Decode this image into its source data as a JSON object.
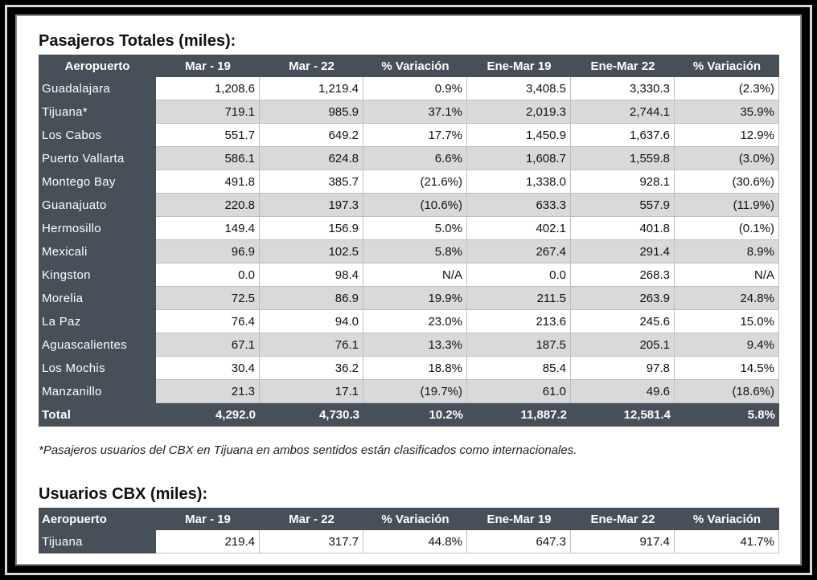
{
  "section1": {
    "title": "Pasajeros Totales (miles):",
    "headers": [
      "Aeropuerto",
      "Mar - 19",
      "Mar - 22",
      "% Variación",
      "Ene-Mar 19",
      "Ene-Mar 22",
      "% Variación"
    ],
    "rows": [
      [
        "Guadalajara",
        "1,208.6",
        "1,219.4",
        "0.9%",
        "3,408.5",
        "3,330.3",
        "(2.3%)"
      ],
      [
        "Tijuana*",
        "719.1",
        "985.9",
        "37.1%",
        "2,019.3",
        "2,744.1",
        "35.9%"
      ],
      [
        "Los Cabos",
        "551.7",
        "649.2",
        "17.7%",
        "1,450.9",
        "1,637.6",
        "12.9%"
      ],
      [
        "Puerto Vallarta",
        "586.1",
        "624.8",
        "6.6%",
        "1,608.7",
        "1,559.8",
        "(3.0%)"
      ],
      [
        "Montego Bay",
        "491.8",
        "385.7",
        "(21.6%)",
        "1,338.0",
        "928.1",
        "(30.6%)"
      ],
      [
        "Guanajuato",
        "220.8",
        "197.3",
        "(10.6%)",
        "633.3",
        "557.9",
        "(11.9%)"
      ],
      [
        "Hermosillo",
        "149.4",
        "156.9",
        "5.0%",
        "402.1",
        "401.8",
        "(0.1%)"
      ],
      [
        "Mexicali",
        "96.9",
        "102.5",
        "5.8%",
        "267.4",
        "291.4",
        "8.9%"
      ],
      [
        "Kingston",
        "0.0",
        "98.4",
        "N/A",
        "0.0",
        "268.3",
        "N/A"
      ],
      [
        "Morelia",
        "72.5",
        "86.9",
        "19.9%",
        "211.5",
        "263.9",
        "24.8%"
      ],
      [
        "La Paz",
        "76.4",
        "94.0",
        "23.0%",
        "213.6",
        "245.6",
        "15.0%"
      ],
      [
        "Aguascalientes",
        "67.1",
        "76.1",
        "13.3%",
        "187.5",
        "205.1",
        "9.4%"
      ],
      [
        "Los Mochis",
        "30.4",
        "36.2",
        "18.8%",
        "85.4",
        "97.8",
        "14.5%"
      ],
      [
        "Manzanillo",
        "21.3",
        "17.1",
        "(19.7%)",
        "61.0",
        "49.6",
        "(18.6%)"
      ]
    ],
    "total": [
      "Total",
      "4,292.0",
      "4,730.3",
      "10.2%",
      "11,887.2",
      "12,581.4",
      "5.8%"
    ],
    "footnote": "*Pasajeros usuarios del CBX en Tijuana en ambos sentidos están clasificados como internacionales."
  },
  "section2": {
    "title": "Usuarios CBX (miles):",
    "headers": [
      "Aeropuerto",
      "Mar - 19",
      "Mar - 22",
      "% Variación",
      "Ene-Mar 19",
      "Ene-Mar 22",
      "% Variación"
    ],
    "rows": [
      [
        "Tijuana",
        "219.4",
        "317.7",
        "44.8%",
        "647.3",
        "917.4",
        "41.7%"
      ]
    ]
  },
  "colors": {
    "header_bg": "#474f59",
    "header_text": "#ffffff",
    "band_gray": "#d9d9d9",
    "band_white": "#ffffff"
  }
}
